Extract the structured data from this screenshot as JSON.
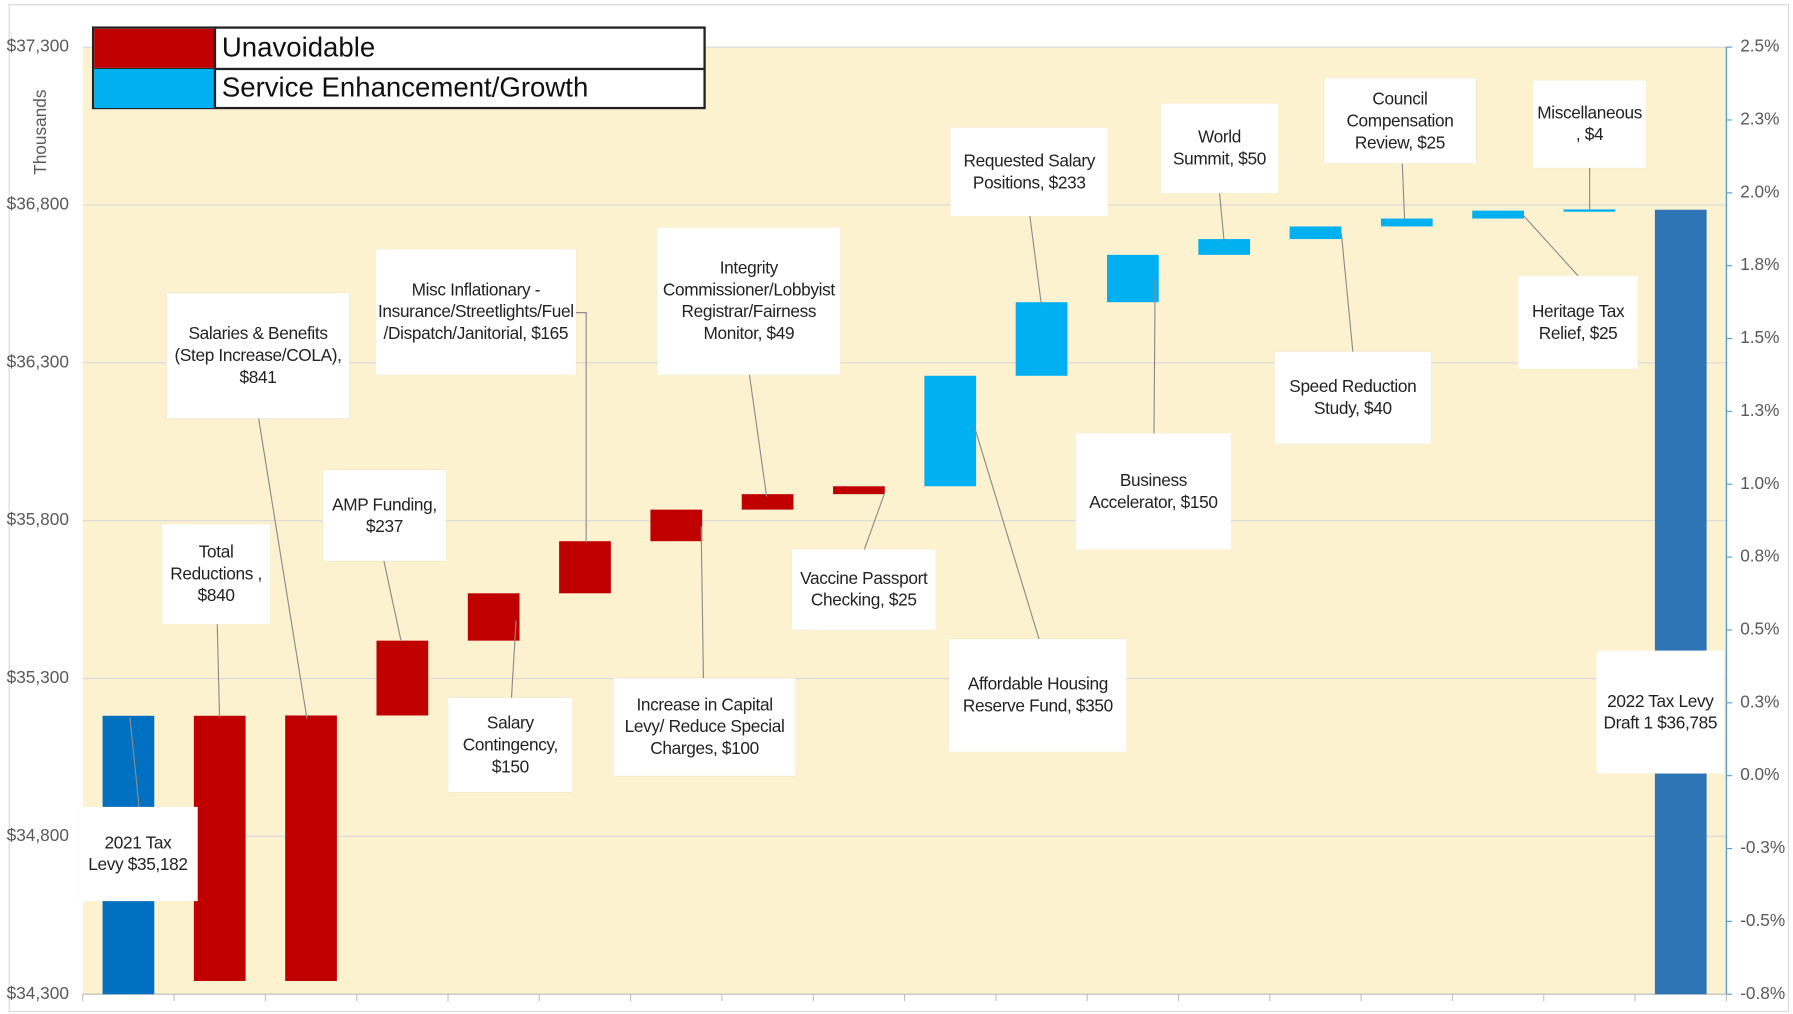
{
  "chart_data": {
    "type": "waterfall",
    "ylabel": "Thousands",
    "categories": [
      "2021 Tax Levy $35,182",
      "Total Reductions , $840",
      "Salaries & Benefits (Step Increase/COLA), $841",
      "AMP Funding, $237",
      "Salary Contingency, $150",
      "Misc Inflationary - Insurance/Streetlights/Fuel /Dispatch/Janitorial, $165",
      "Increase in Capital Levy/ Reduce Special Charges, $100",
      "Integrity Commissioner/Lobbyist Registrar/Fairness Monitor, $49",
      "Vaccine Passport Checking, $25",
      "Affordable Housing Reserve Fund, $350",
      "Requested Salary Positions, $233",
      "Business Accelerator, $150",
      "World Summit, $50",
      "Speed Reduction Study, $40",
      "Council Compensation Review, $25",
      "Heritage Tax Relief, $25",
      "Miscellaneous , $4",
      "2022 Tax Levy Draft 1 $36,785"
    ],
    "values": [
      35182,
      -840,
      841,
      237,
      150,
      165,
      100,
      49,
      25,
      350,
      233,
      150,
      50,
      40,
      25,
      25,
      4,
      36785
    ],
    "is_total": [
      true,
      false,
      false,
      false,
      false,
      false,
      false,
      false,
      false,
      false,
      false,
      false,
      false,
      false,
      false,
      false,
      false,
      true
    ],
    "colors": [
      "#0070c0",
      "#c00000",
      "#c00000",
      "#c00000",
      "#c00000",
      "#c00000",
      "#c00000",
      "#c00000",
      "#c00000",
      "#00b0f0",
      "#00b0f0",
      "#00b0f0",
      "#00b0f0",
      "#00b0f0",
      "#00b0f0",
      "#00b0f0",
      "#00b0f0",
      "#2e75b6"
    ],
    "series": [
      {
        "name": "Unavoidable",
        "color": "#c00000"
      },
      {
        "name": "Service Enhancement/Growth",
        "color": "#00b0f0"
      }
    ],
    "ylim": [
      34300,
      37300
    ],
    "yticks": [
      {
        "value": 34300,
        "label": "$34,300"
      },
      {
        "value": 34800,
        "label": "$34,800"
      },
      {
        "value": 35300,
        "label": "$35,300"
      },
      {
        "value": 35800,
        "label": "$35,800"
      },
      {
        "value": 36300,
        "label": "$36,300"
      },
      {
        "value": 36800,
        "label": "$36,800"
      },
      {
        "value": 37300,
        "label": "$37,300"
      }
    ],
    "y2lim": [
      -0.75,
      2.5
    ],
    "y2ticks": [
      {
        "value": -0.75,
        "label": "-0.8%"
      },
      {
        "value": -0.5,
        "label": "-0.5%"
      },
      {
        "value": -0.25,
        "label": "-0.3%"
      },
      {
        "value": 0,
        "label": "0.0%"
      },
      {
        "value": 0.25,
        "label": "0.3%"
      },
      {
        "value": 0.5,
        "label": "0.5%"
      },
      {
        "value": 0.75,
        "label": "0.8%"
      },
      {
        "value": 1,
        "label": "1.0%"
      },
      {
        "value": 1.25,
        "label": "1.3%"
      },
      {
        "value": 1.5,
        "label": "1.5%"
      },
      {
        "value": 1.75,
        "label": "1.8%"
      },
      {
        "value": 2,
        "label": "2.0%"
      },
      {
        "value": 2.25,
        "label": "2.3%"
      },
      {
        "value": 2.5,
        "label": "2.5%"
      }
    ],
    "grid": true,
    "background": "#fdf2d0"
  }
}
